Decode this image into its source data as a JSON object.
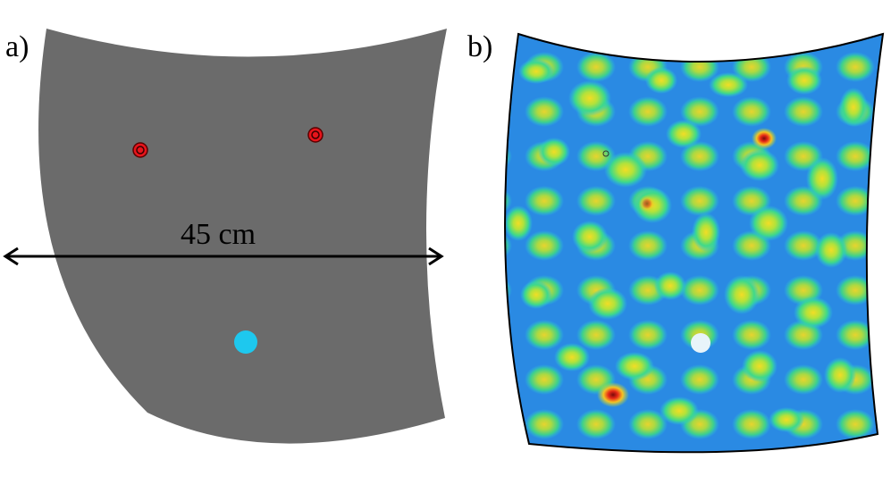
{
  "panels": {
    "a": {
      "label": "a)"
    },
    "b": {
      "label": "b)"
    }
  },
  "dimension": {
    "text": "45 cm"
  },
  "colors": {
    "plate": "#6b6b6b",
    "marker_red": "#e8141b",
    "source_cyan": "#1ec8ee",
    "field_low": "#1a1fd0",
    "field_mid": "#25c8e8",
    "field_high": "#aee23a",
    "field_peak": "#f2dd25",
    "field_max": "#c9151a"
  },
  "markers": {
    "red_receivers": 2,
    "cyan_source": 1
  }
}
